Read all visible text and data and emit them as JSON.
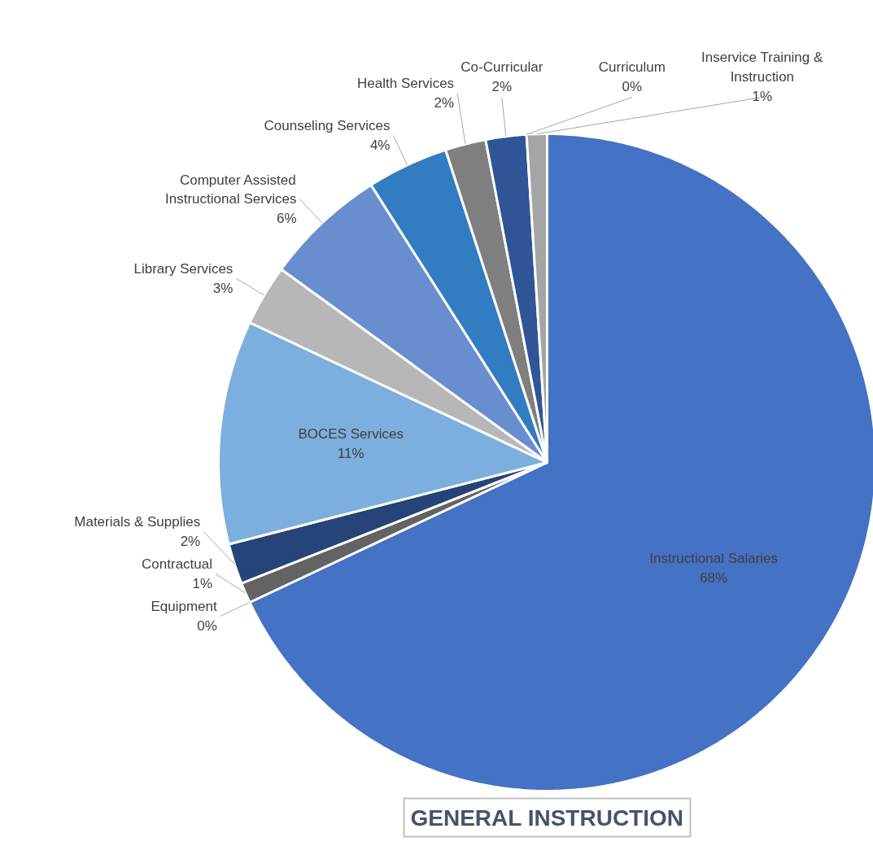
{
  "chart_data": {
    "type": "pie",
    "title": "GENERAL INSTRUCTION",
    "categories": [
      "Instructional Salaries",
      "Equipment",
      "Contractual",
      "Materials & Supplies",
      "BOCES Services",
      "Library Services",
      "Computer Assisted Instructional Services",
      "Counseling Services",
      "Health Services",
      "Co-Curricular",
      "Curriculum",
      "Inservice Training & Instruction"
    ],
    "values": [
      68,
      0,
      1,
      2,
      11,
      3,
      6,
      4,
      2,
      2,
      0,
      1
    ],
    "value_labels": [
      "68%",
      "0%",
      "1%",
      "2%",
      "11%",
      "3%",
      "6%",
      "4%",
      "2%",
      "2%",
      "0%",
      "1%"
    ],
    "colors": [
      "#4472c4",
      "#5b9bd5",
      "#636363",
      "#264478",
      "#7cafdd",
      "#b7b7b7",
      "#698ed0",
      "#327dc2",
      "#7f7f7f",
      "#2f5597",
      "#9dc3e6",
      "#a5a5a5"
    ]
  }
}
